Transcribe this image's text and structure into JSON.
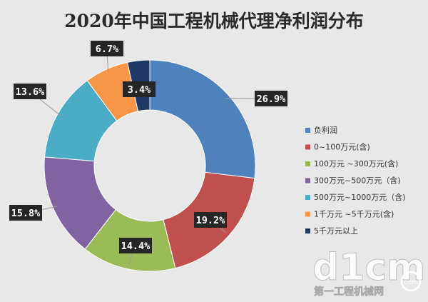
{
  "chart_data": {
    "type": "pie",
    "variant": "donut",
    "title": "2020年中国工程机械代理净利润分布",
    "categories": [
      "负利润",
      "0~100万元(含)",
      "100万元 ~300万元(含)",
      "300万元~500万元（含)",
      "500万元~1000万元（含)",
      "1千万元 ~5千万元(含)",
      "5千万元以上"
    ],
    "values": [
      26.9,
      19.2,
      14.4,
      15.8,
      13.6,
      6.7,
      3.4
    ],
    "data_labels": [
      "26.9%",
      "19.2%",
      "14.4%",
      "15.8%",
      "13.6%",
      "6.7%",
      "3.4%"
    ],
    "colors": [
      "#4f81bd",
      "#c0504d",
      "#9bbb59",
      "#8064a2",
      "#4bacc6",
      "#f79646",
      "#1f3864"
    ],
    "legend_position": "right",
    "start_angle_deg": 0,
    "direction": "clockwise"
  },
  "watermark": {
    "logo_text": "d1cm",
    "site_text": "第一工程机械网",
    "url_text": "com"
  }
}
